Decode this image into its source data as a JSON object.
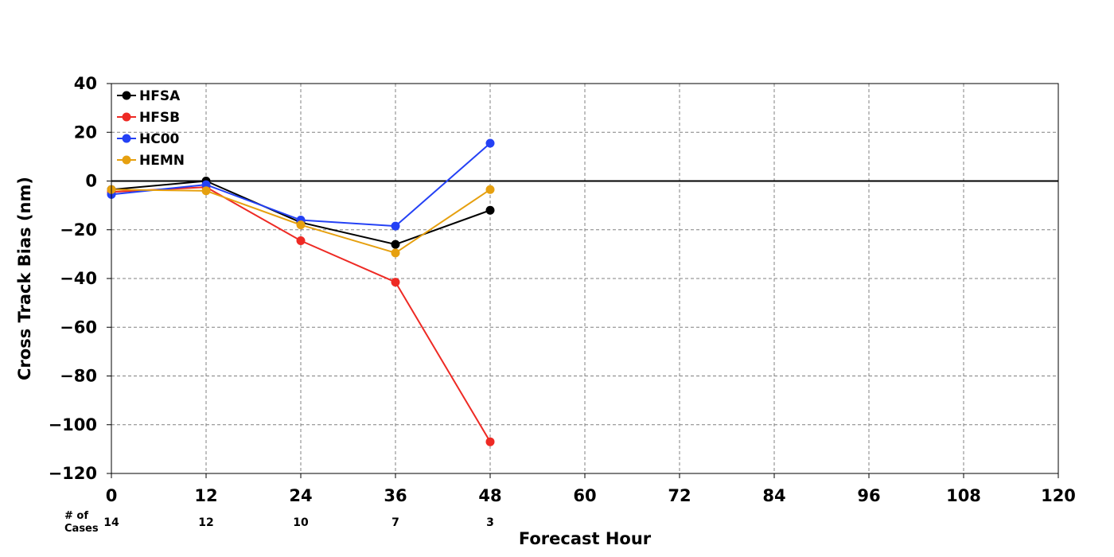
{
  "chart_data": {
    "type": "line",
    "title": "",
    "xlabel": "Forecast Hour",
    "ylabel": "Cross Track Bias (nm)",
    "xlim": [
      0,
      120
    ],
    "ylim": [
      -120,
      40
    ],
    "x_ticks": [
      0,
      12,
      24,
      36,
      48,
      60,
      72,
      84,
      96,
      108,
      120
    ],
    "y_ticks": [
      40,
      20,
      0,
      -20,
      -40,
      -60,
      -80,
      -100,
      -120
    ],
    "grid": true,
    "legend_position": "top-left",
    "zero_line": true,
    "x": [
      0,
      12,
      24,
      36,
      48
    ],
    "series": [
      {
        "name": "HFSA",
        "color": "#000000",
        "values": [
          -3.5,
          0,
          -17,
          -26,
          -12
        ]
      },
      {
        "name": "HFSB",
        "color": "#ee2a24",
        "values": [
          -4.5,
          -2.5,
          -24.5,
          -41.5,
          -107
        ]
      },
      {
        "name": "HC00",
        "color": "#2441f5",
        "values": [
          -5.5,
          -1.5,
          -16,
          -18.5,
          15.5
        ]
      },
      {
        "name": "HEMN",
        "color": "#e6a00f",
        "values": [
          -3.5,
          -4,
          -18,
          -29.5,
          -3.5
        ]
      }
    ],
    "cases": {
      "label_line1": "# of",
      "label_line2": "Cases",
      "x": [
        0,
        12,
        24,
        36,
        48
      ],
      "counts": [
        "14",
        "12",
        "10",
        "7",
        "3"
      ]
    }
  }
}
